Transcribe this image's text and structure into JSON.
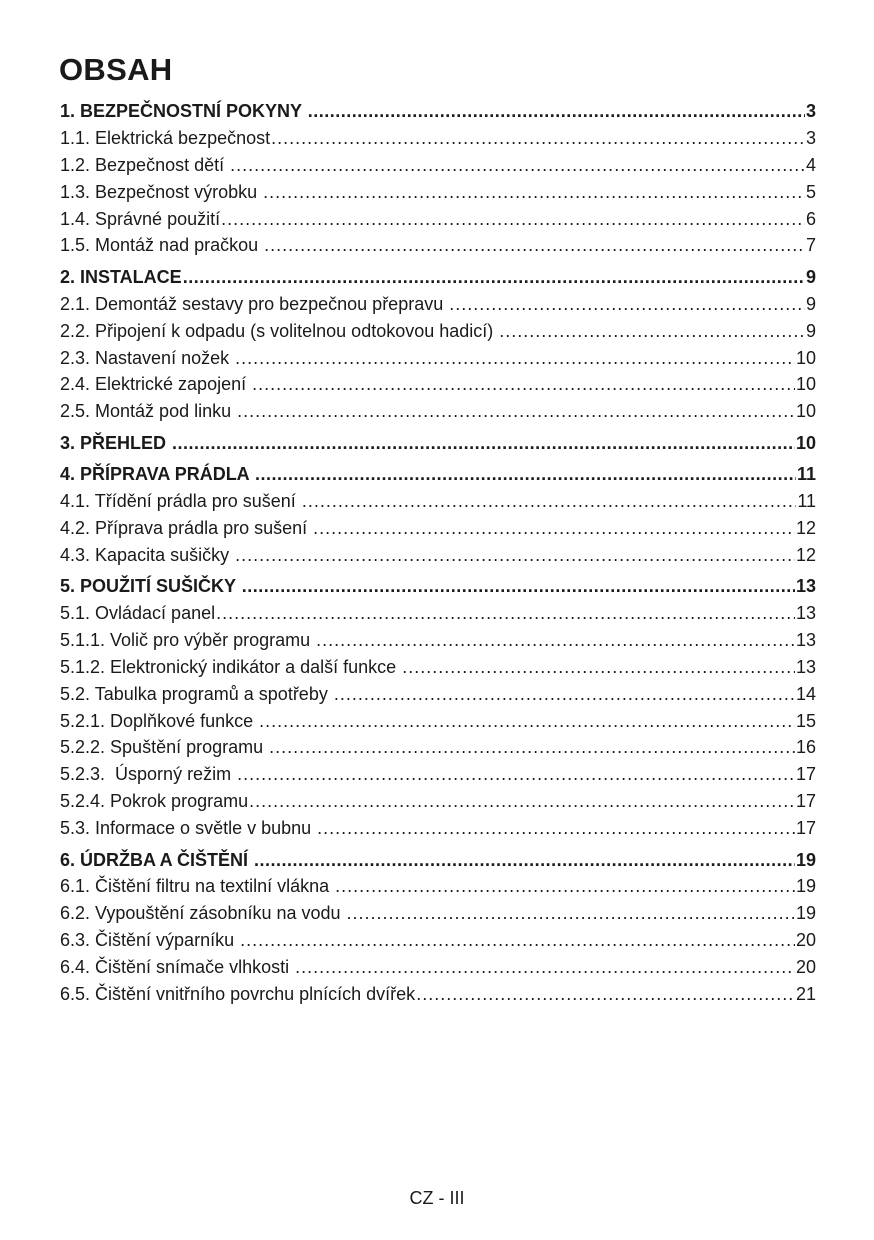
{
  "title": "OBSAH",
  "entries": [
    {
      "label": "1. BEZPEČNOSTNÍ POKYNY ",
      "page": "3",
      "heading": true
    },
    {
      "label": "1.1. Elektrická bezpečnost",
      "page": "3",
      "heading": false
    },
    {
      "label": "1.2. Bezpečnost dětí ",
      "page": "4",
      "heading": false
    },
    {
      "label": "1.3. Bezpečnost výrobku ",
      "page": "5",
      "heading": false
    },
    {
      "label": "1.4. Správné použití",
      "page": "6",
      "heading": false
    },
    {
      "label": "1.5. Montáž nad pračkou ",
      "page": "7",
      "heading": false
    },
    {
      "label": "2. INSTALACE",
      "page": "9",
      "heading": true
    },
    {
      "label": "2.1. Demontáž sestavy pro bezpečnou přepravu ",
      "page": "9",
      "heading": false
    },
    {
      "label": "2.2. Připojení k odpadu (s volitelnou odtokovou hadicí) ",
      "page": "9",
      "heading": false
    },
    {
      "label": "2.3. Nastavení nožek ",
      "page": "10",
      "heading": false
    },
    {
      "label": "2.4. Elektrické zapojení ",
      "page": "10",
      "heading": false
    },
    {
      "label": "2.5. Montáž pod linku ",
      "page": "10",
      "heading": false
    },
    {
      "label": "3. PŘEHLED ",
      "page": "10",
      "heading": true
    },
    {
      "label": "4. PŘÍPRAVA PRÁDLA ",
      "page": "11",
      "heading": true
    },
    {
      "label": "4.1. Třídění prádla pro sušení ",
      "page": "11",
      "heading": false
    },
    {
      "label": "4.2. Příprava prádla pro sušení ",
      "page": "12",
      "heading": false
    },
    {
      "label": "4.3. Kapacita sušičky ",
      "page": "12",
      "heading": false
    },
    {
      "label": "5. POUŽITÍ SUŠIČKY ",
      "page": "13",
      "heading": true
    },
    {
      "label": "5.1. Ovládací panel",
      "page": "13",
      "heading": false
    },
    {
      "label": "5.1.1. Volič pro výběr programu ",
      "page": "13",
      "heading": false
    },
    {
      "label": "5.1.2. Elektronický indikátor a další funkce ",
      "page": "13",
      "heading": false
    },
    {
      "label": "5.2. Tabulka programů a spotřeby ",
      "page": "14",
      "heading": false
    },
    {
      "label": "5.2.1. Doplňkové funkce ",
      "page": "15",
      "heading": false
    },
    {
      "label": "5.2.2. Spuštění programu ",
      "page": "16",
      "heading": false
    },
    {
      "label": "5.2.3.  Úsporný režim ",
      "page": "17",
      "heading": false
    },
    {
      "label": "5.2.4. Pokrok programu",
      "page": "17",
      "heading": false
    },
    {
      "label": "5.3. Informace o světle v bubnu ",
      "page": "17",
      "heading": false
    },
    {
      "label": "6. ÚDRŽBA A ČIŠTĚNÍ ",
      "page": "19",
      "heading": true
    },
    {
      "label": "6.1. Čištění filtru na textilní vlákna ",
      "page": "19",
      "heading": false
    },
    {
      "label": "6.2. Vypouštění zásobníku na vodu ",
      "page": "19",
      "heading": false
    },
    {
      "label": "6.3. Čištění výparníku ",
      "page": "20",
      "heading": false
    },
    {
      "label": "6.4. Čištění snímače vlhkosti ",
      "page": "20",
      "heading": false
    },
    {
      "label": "6.5. Čištění vnitřního povrchu plnících dvířek",
      "page": "21",
      "heading": false
    }
  ],
  "footer": "CZ - III"
}
